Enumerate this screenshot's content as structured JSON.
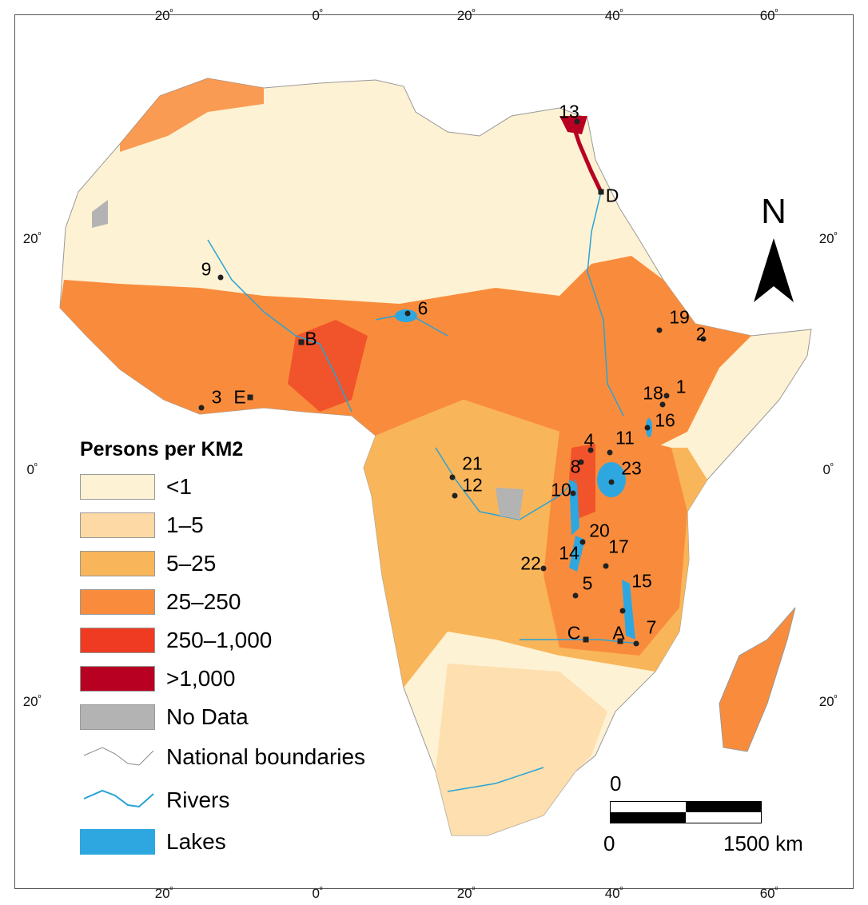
{
  "graticule": {
    "top": [
      "20º",
      "0º",
      "20º",
      "40º",
      "60º"
    ],
    "bottom": [
      "20º",
      "0º",
      "20º",
      "40º",
      "60º"
    ],
    "left": [
      "20º",
      "0º",
      "20º"
    ],
    "right": [
      "20º",
      "0º",
      "20º"
    ]
  },
  "legend": {
    "title": "Persons per KM2",
    "classes": [
      {
        "label": "<1",
        "color": "#fef2d4"
      },
      {
        "label": "1–5",
        "color": "#fdd9a6"
      },
      {
        "label": "5–25",
        "color": "#f9b55a"
      },
      {
        "label": "25–250",
        "color": "#f98c3c"
      },
      {
        "label": "250–1,000",
        "color": "#ee3b22"
      },
      {
        "label": ">1,000",
        "color": "#b70022"
      },
      {
        "label": "No Data",
        "color": "#b3b3b3"
      }
    ],
    "boundaries": "National boundaries",
    "rivers": "Rivers",
    "lakes": "Lakes",
    "river_color": "#29a3d6",
    "lake_color": "#2ea7e0"
  },
  "north": "N",
  "scale": {
    "top_zero": "0",
    "start": "0",
    "end": "1500 km"
  },
  "markers": {
    "m1": "1",
    "m2": "2",
    "m3": "3",
    "m4": "4",
    "m5": "5",
    "m6": "6",
    "m7": "7",
    "m8": "8",
    "m9": "9",
    "m10": "10",
    "m11": "11",
    "m12": "12",
    "m13": "13",
    "m14": "14",
    "m15": "15",
    "m16": "16",
    "m17": "17",
    "m18": "18",
    "m19": "19",
    "m20": "20",
    "m21": "21",
    "m22": "22",
    "m23": "23",
    "A": "A",
    "B": "B",
    "C": "C",
    "D": "D",
    "E": "E"
  }
}
